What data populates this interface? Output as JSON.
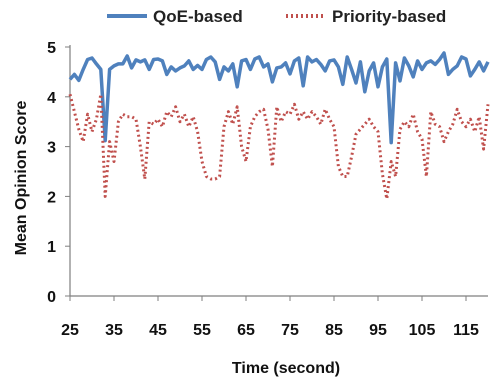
{
  "chart_data": {
    "type": "line",
    "title": "",
    "xlabel": "Time (second)",
    "ylabel": "Mean Opinion Score",
    "xlim": [
      25,
      120
    ],
    "ylim": [
      0,
      5
    ],
    "x_ticks": [
      25,
      35,
      45,
      55,
      65,
      75,
      85,
      95,
      105,
      115
    ],
    "y_ticks": [
      0,
      1,
      2,
      3,
      4,
      5
    ],
    "grid": false,
    "legend_position": "top",
    "series": [
      {
        "name": "QoE-based",
        "color": "#4f81bd",
        "style": "solid",
        "x": [
          25,
          26,
          27,
          28,
          29,
          30,
          31,
          32,
          33,
          34,
          35,
          36,
          37,
          38,
          39,
          40,
          41,
          42,
          43,
          44,
          45,
          46,
          47,
          48,
          49,
          50,
          51,
          52,
          53,
          54,
          55,
          56,
          57,
          58,
          59,
          60,
          61,
          62,
          63,
          64,
          65,
          66,
          67,
          68,
          69,
          70,
          71,
          72,
          73,
          74,
          75,
          76,
          77,
          78,
          79,
          80,
          81,
          82,
          83,
          84,
          85,
          86,
          87,
          88,
          89,
          90,
          91,
          92,
          93,
          94,
          95,
          96,
          97,
          98,
          99,
          100,
          101,
          102,
          103,
          104,
          105,
          106,
          107,
          108,
          109,
          110,
          111,
          112,
          113,
          114,
          115,
          116,
          117,
          118,
          119,
          120
        ],
        "values": [
          4.35,
          4.45,
          4.33,
          4.55,
          4.75,
          4.78,
          4.66,
          4.55,
          3.12,
          4.55,
          4.62,
          4.66,
          4.66,
          4.82,
          4.58,
          4.74,
          4.7,
          4.74,
          4.55,
          4.75,
          4.76,
          4.72,
          4.45,
          4.6,
          4.52,
          4.58,
          4.62,
          4.72,
          4.55,
          4.63,
          4.55,
          4.75,
          4.8,
          4.7,
          4.35,
          4.6,
          4.52,
          4.66,
          4.2,
          4.72,
          4.75,
          4.55,
          4.76,
          4.8,
          4.6,
          4.66,
          4.3,
          4.58,
          4.6,
          4.68,
          4.46,
          4.72,
          4.78,
          4.22,
          4.8,
          4.7,
          4.75,
          4.65,
          4.52,
          4.72,
          4.74,
          4.6,
          4.25,
          4.8,
          4.55,
          4.28,
          4.7,
          4.1,
          4.52,
          4.68,
          4.2,
          4.6,
          4.76,
          3.08,
          4.68,
          4.32,
          4.78,
          4.62,
          4.4,
          4.72,
          4.55,
          4.68,
          4.72,
          4.65,
          4.75,
          4.88,
          4.45,
          4.55,
          4.62,
          4.8,
          4.76,
          4.42,
          4.55,
          4.7,
          4.52,
          4.7
        ]
      },
      {
        "name": "Priority-based",
        "color": "#c0504d",
        "style": "dotted",
        "x": [
          25,
          26,
          27,
          28,
          29,
          30,
          31,
          32,
          33,
          34,
          35,
          36,
          37,
          38,
          39,
          40,
          41,
          42,
          43,
          44,
          45,
          46,
          47,
          48,
          49,
          50,
          51,
          52,
          53,
          54,
          55,
          56,
          57,
          58,
          59,
          60,
          61,
          62,
          63,
          64,
          65,
          66,
          67,
          68,
          69,
          70,
          71,
          72,
          73,
          74,
          75,
          76,
          77,
          78,
          79,
          80,
          81,
          82,
          83,
          84,
          85,
          86,
          87,
          88,
          89,
          90,
          91,
          92,
          93,
          94,
          95,
          96,
          97,
          98,
          99,
          100,
          101,
          102,
          103,
          104,
          105,
          106,
          107,
          108,
          109,
          110,
          111,
          112,
          113,
          114,
          115,
          116,
          117,
          118,
          119,
          120
        ],
        "values": [
          4.05,
          3.7,
          3.35,
          3.1,
          3.65,
          3.3,
          3.55,
          4.05,
          2.0,
          3.1,
          2.7,
          3.5,
          3.65,
          3.6,
          3.6,
          3.55,
          3.0,
          2.35,
          3.5,
          3.45,
          3.55,
          3.4,
          3.7,
          3.6,
          3.8,
          3.5,
          3.65,
          3.4,
          3.6,
          3.3,
          2.7,
          2.4,
          2.35,
          2.35,
          2.4,
          3.4,
          3.7,
          3.45,
          3.8,
          3.0,
          2.7,
          3.4,
          3.6,
          3.7,
          3.75,
          3.35,
          2.6,
          3.8,
          3.5,
          3.7,
          3.65,
          3.85,
          3.55,
          3.7,
          3.55,
          3.7,
          3.6,
          3.45,
          3.75,
          3.55,
          3.4,
          2.6,
          2.4,
          2.4,
          2.8,
          3.25,
          3.35,
          3.45,
          3.55,
          3.4,
          3.3,
          2.45,
          1.95,
          2.7,
          2.4,
          3.35,
          3.5,
          3.4,
          3.65,
          3.3,
          3.15,
          2.4,
          3.7,
          3.45,
          3.4,
          3.1,
          3.3,
          3.45,
          3.75,
          3.5,
          3.4,
          3.55,
          3.3,
          3.6,
          2.95,
          3.85
        ]
      }
    ]
  }
}
